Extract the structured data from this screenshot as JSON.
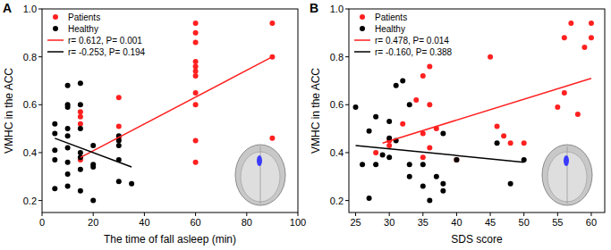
{
  "chart_data": [
    {
      "type": "scatter",
      "title": "A",
      "x_label": "The time of fall asleep (min)",
      "y_label": "VMHC in the ACC",
      "xlim": [
        0,
        100
      ],
      "xticks": [
        0,
        20,
        40,
        60,
        80,
        100
      ],
      "ylim": [
        0.15,
        1.0
      ],
      "yticks": [
        0.2,
        0.4,
        0.6,
        0.8,
        {
          "value": 1.0,
          "label": "1.0"
        }
      ],
      "legend": "upper left",
      "grid": false,
      "series": [
        {
          "name": "Patients",
          "type": "scatter",
          "marker": "circle",
          "color": "#ff2020",
          "x": [
            15,
            15,
            15,
            15,
            30,
            30,
            30,
            60,
            60,
            60,
            60,
            60,
            60,
            60,
            60,
            60,
            60,
            60,
            90,
            90,
            90
          ],
          "values": [
            0.57,
            0.55,
            0.52,
            0.37,
            0.63,
            0.51,
            0.46,
            0.94,
            0.9,
            0.86,
            0.78,
            0.76,
            0.74,
            0.72,
            0.65,
            0.6,
            0.45,
            0.36,
            0.94,
            0.8,
            0.46
          ]
        },
        {
          "name": "Healthy",
          "type": "scatter",
          "marker": "circle",
          "color": "#000000",
          "x": [
            5,
            5,
            5,
            5,
            5,
            10,
            10,
            10,
            10,
            10,
            10,
            10,
            10,
            10,
            15,
            15,
            15,
            15,
            15,
            15,
            15,
            20,
            20,
            20,
            20,
            30,
            30,
            30,
            30,
            30,
            35
          ],
          "values": [
            0.52,
            0.48,
            0.41,
            0.37,
            0.25,
            0.68,
            0.6,
            0.59,
            0.5,
            0.47,
            0.42,
            0.36,
            0.31,
            0.26,
            0.69,
            0.6,
            0.5,
            0.4,
            0.38,
            0.33,
            0.24,
            0.43,
            0.35,
            0.34,
            0.2,
            0.47,
            0.45,
            0.43,
            0.37,
            0.28,
            0.27
          ]
        },
        {
          "name": "r= 0.612, P= 0.001",
          "type": "line",
          "line_style": "solid",
          "color": "#ff2020",
          "x": [
            15,
            90
          ],
          "values": [
            0.38,
            0.8
          ]
        },
        {
          "name": "r= -0.253, P= 0.194",
          "type": "line",
          "line_style": "solid",
          "color": "#000000",
          "x": [
            5,
            35
          ],
          "values": [
            0.46,
            0.34
          ]
        }
      ]
    },
    {
      "type": "scatter",
      "title": "B",
      "x_label": "SDS score",
      "y_label": "VMHC in the ACC",
      "xlim": [
        24,
        62
      ],
      "xticks": [
        25,
        30,
        35,
        40,
        45,
        50,
        55,
        60
      ],
      "ylim": [
        0.15,
        1.0
      ],
      "yticks": [
        0.2,
        0.4,
        0.6,
        0.8,
        {
          "value": 1.0,
          "label": "1.0"
        }
      ],
      "legend": "upper left",
      "grid": false,
      "series": [
        {
          "name": "Patients",
          "type": "scatter",
          "marker": "circle",
          "color": "#ff2020",
          "x": [
            28,
            30,
            30,
            32,
            34,
            35,
            35,
            35,
            36,
            36,
            36,
            37,
            40,
            45,
            46,
            47,
            48,
            50,
            55,
            56,
            56,
            57,
            58,
            59,
            60,
            60
          ],
          "values": [
            0.4,
            0.45,
            0.43,
            0.52,
            0.62,
            0.72,
            0.48,
            0.38,
            0.76,
            0.6,
            0.42,
            0.5,
            0.37,
            0.8,
            0.51,
            0.47,
            0.44,
            0.44,
            0.59,
            0.65,
            0.88,
            0.94,
            0.56,
            0.84,
            0.94,
            0.88
          ]
        },
        {
          "name": "Healthy",
          "type": "scatter",
          "marker": "circle",
          "color": "#000000",
          "x": [
            25,
            26,
            27,
            27,
            28,
            28,
            29,
            30,
            30,
            30,
            31,
            31,
            32,
            33,
            33,
            33,
            35,
            35,
            36,
            37,
            38,
            38,
            38,
            40,
            46,
            48,
            50
          ],
          "values": [
            0.59,
            0.35,
            0.49,
            0.21,
            0.55,
            0.35,
            0.39,
            0.53,
            0.46,
            0.38,
            0.68,
            0.45,
            0.7,
            0.3,
            0.35,
            0.6,
            0.35,
            0.26,
            0.2,
            0.3,
            0.48,
            0.27,
            0.24,
            0.37,
            0.44,
            0.27,
            0.37
          ]
        },
        {
          "name": "r= 0.478, P= 0.014",
          "type": "line",
          "line_style": "solid",
          "color": "#ff2020",
          "x": [
            29,
            60
          ],
          "values": [
            0.44,
            0.71
          ]
        },
        {
          "name": "r= -0.160, P= 0.388",
          "type": "line",
          "line_style": "solid",
          "color": "#000000",
          "x": [
            25,
            50
          ],
          "values": [
            0.43,
            0.36
          ]
        }
      ]
    }
  ]
}
